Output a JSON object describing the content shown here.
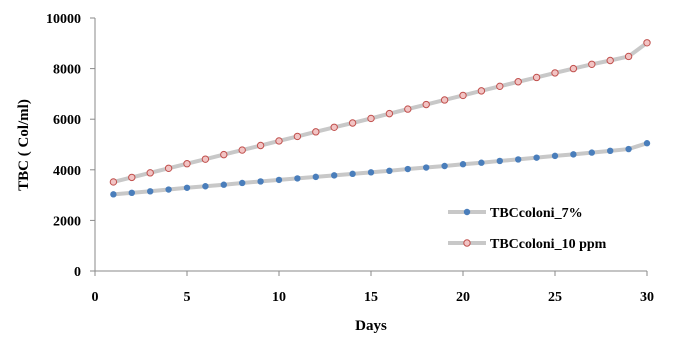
{
  "chart_data": {
    "type": "line",
    "xlabel": "Days",
    "ylabel": "TBC  ( Col/ml)",
    "xlim": [
      0,
      30
    ],
    "ylim": [
      0,
      10000
    ],
    "x_ticks": [
      "0",
      "5",
      "10",
      "15",
      "20",
      "25",
      "30"
    ],
    "y_ticks": [
      "0",
      "2000",
      "4000",
      "6000",
      "8000",
      "10000"
    ],
    "grid": false,
    "legend_position": "bottom-right",
    "x": [
      1,
      2,
      3,
      4,
      5,
      6,
      7,
      8,
      9,
      10,
      11,
      12,
      13,
      14,
      15,
      16,
      17,
      18,
      19,
      20,
      21,
      22,
      23,
      24,
      25,
      26,
      27,
      28,
      29,
      30
    ],
    "series": [
      {
        "name": "TBCcoloni_7%",
        "line_color": "#c8c8c8",
        "marker_color": "#4a7ebb",
        "values": [
          3030,
          3090,
          3150,
          3220,
          3290,
          3350,
          3410,
          3480,
          3540,
          3600,
          3660,
          3720,
          3780,
          3840,
          3900,
          3960,
          4030,
          4090,
          4150,
          4220,
          4280,
          4350,
          4410,
          4480,
          4550,
          4610,
          4680,
          4750,
          4820,
          5050
        ]
      },
      {
        "name": "TBCcoloni_10 ppm",
        "line_color": "#c8c8c8",
        "marker_color": "#f2c4c4",
        "marker_edge": "#c0504d",
        "values": [
          3520,
          3700,
          3880,
          4060,
          4240,
          4420,
          4600,
          4780,
          4960,
          5140,
          5320,
          5500,
          5680,
          5850,
          6030,
          6220,
          6400,
          6580,
          6760,
          6940,
          7120,
          7300,
          7480,
          7650,
          7830,
          8000,
          8170,
          8320,
          8480,
          9020
        ]
      }
    ]
  }
}
